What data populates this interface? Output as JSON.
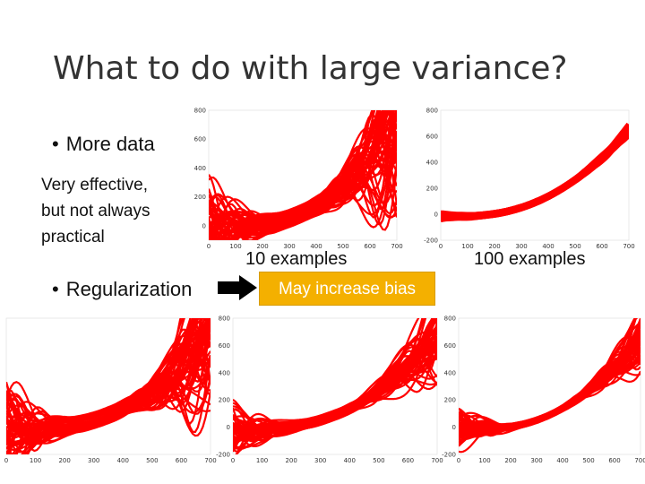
{
  "slide": {
    "title": "What to do with large variance?",
    "bullet_more_data": "More data",
    "note_line1": "Very effective,",
    "note_line2": "but not always",
    "note_line3": "practical",
    "bullet_regularization": "Regularization",
    "caption_10": "10 examples",
    "caption_100": "100 examples",
    "bias_label": "May increase bias",
    "bullet_symbol": "•"
  },
  "colors": {
    "curve": "#ff0000",
    "highlight": "#f4b000",
    "text": "#111111"
  },
  "icons": {
    "arrow": "black-right-arrow-icon"
  },
  "chart_data": [
    {
      "type": "line",
      "name": "top-left",
      "description_caption": "10 examples",
      "xlim": [
        0,
        700
      ],
      "ylim": [
        -100,
        800
      ],
      "xticks": [
        0,
        100,
        200,
        300,
        400,
        500,
        600,
        700
      ],
      "yticks": [
        0,
        200,
        400,
        600,
        800
      ],
      "curve_count": 60,
      "spread": 1.0
    },
    {
      "type": "line",
      "name": "top-right",
      "description_caption": "100 examples",
      "xlim": [
        0,
        700
      ],
      "ylim": [
        -200,
        800
      ],
      "xticks": [
        0,
        100,
        200,
        300,
        400,
        500,
        600,
        700
      ],
      "yticks": [
        -200,
        0,
        200,
        400,
        600,
        800
      ],
      "curve_count": 60,
      "spread": 0.05
    },
    {
      "type": "line",
      "name": "bottom-1",
      "xlim": [
        0,
        700
      ],
      "ylim": [
        -200,
        800
      ],
      "xticks": [
        0,
        100,
        200,
        300,
        400,
        500,
        600,
        700
      ],
      "yticks": [],
      "curve_count": 60,
      "spread": 1.0
    },
    {
      "type": "line",
      "name": "bottom-2",
      "xlim": [
        0,
        700
      ],
      "ylim": [
        -200,
        800
      ],
      "xticks": [
        0,
        100,
        200,
        300,
        400,
        500,
        600,
        700
      ],
      "yticks": [
        -200,
        0,
        200,
        400,
        600,
        800
      ],
      "curve_count": 60,
      "spread": 0.6
    },
    {
      "type": "line",
      "name": "bottom-3",
      "xlim": [
        0,
        700
      ],
      "ylim": [
        -200,
        800
      ],
      "xticks": [
        0,
        100,
        200,
        300,
        400,
        500,
        600,
        700
      ],
      "yticks": [
        -200,
        0,
        200,
        400,
        600,
        800
      ],
      "curve_count": 60,
      "spread": 0.35
    }
  ]
}
